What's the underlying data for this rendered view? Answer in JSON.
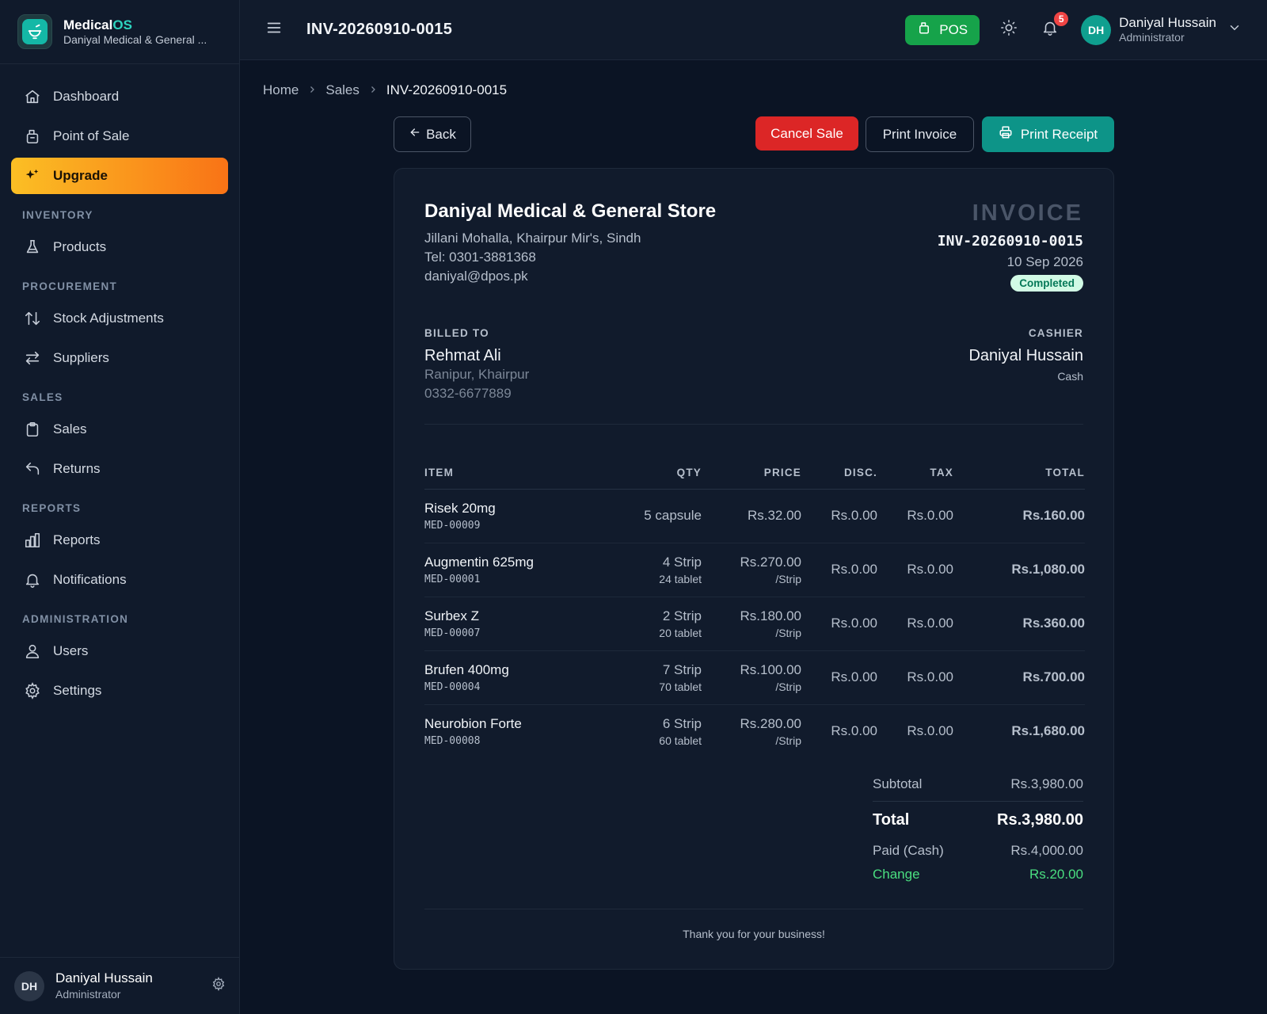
{
  "brand": {
    "name_main": "Medical",
    "name_accent": "OS",
    "store": "Daniyal Medical & General ..."
  },
  "sidebar": {
    "items": [
      {
        "label": "Dashboard",
        "icon": "home-icon"
      },
      {
        "label": "Point of Sale",
        "icon": "pos-icon"
      },
      {
        "label": "Upgrade",
        "icon": "sparkles-icon"
      }
    ],
    "sections": {
      "inventory": {
        "title": "INVENTORY",
        "items": [
          {
            "label": "Products",
            "icon": "flask-icon"
          }
        ]
      },
      "procurement": {
        "title": "PROCUREMENT",
        "items": [
          {
            "label": "Stock Adjustments",
            "icon": "arrows-up-down-icon"
          },
          {
            "label": "Suppliers",
            "icon": "arrows-left-right-icon"
          }
        ]
      },
      "sales": {
        "title": "SALES",
        "items": [
          {
            "label": "Sales",
            "icon": "clipboard-icon"
          },
          {
            "label": "Returns",
            "icon": "undo-icon"
          }
        ]
      },
      "reports": {
        "title": "REPORTS",
        "items": [
          {
            "label": "Reports",
            "icon": "bar-chart-icon"
          },
          {
            "label": "Notifications",
            "icon": "bell-icon"
          }
        ]
      },
      "administration": {
        "title": "ADMINISTRATION",
        "items": [
          {
            "label": "Users",
            "icon": "users-icon"
          },
          {
            "label": "Settings",
            "icon": "gear-icon"
          }
        ]
      }
    },
    "footer": {
      "initials": "DH",
      "name": "Daniyal Hussain",
      "role": "Administrator"
    }
  },
  "header": {
    "title": "INV-20260910-0015",
    "pos_label": "POS",
    "notifications_count": "5",
    "user": {
      "initials": "DH",
      "name": "Daniyal Hussain",
      "role": "Administrator"
    }
  },
  "breadcrumb": {
    "home": "Home",
    "section": "Sales",
    "current": "INV-20260910-0015"
  },
  "toolbar": {
    "back": "Back",
    "cancel": "Cancel Sale",
    "print_invoice": "Print Invoice",
    "print_receipt": "Print Receipt"
  },
  "invoice": {
    "store": {
      "name": "Daniyal Medical & General Store",
      "address": "Jillani Mohalla, Khairpur Mir's, Sindh",
      "phone": "Tel: 0301-3881368",
      "email": "daniyal@dpos.pk"
    },
    "label": "INVOICE",
    "number": "INV-20260910-0015",
    "date": "10 Sep 2026",
    "status": "Completed",
    "billed_to": {
      "label": "BILLED TO",
      "name": "Rehmat Ali",
      "address": "Ranipur, Khairpur",
      "phone": "0332-6677889"
    },
    "cashier": {
      "label": "CASHIER",
      "name": "Daniyal Hussain",
      "method": "Cash"
    },
    "columns": {
      "item": "ITEM",
      "qty": "QTY",
      "price": "PRICE",
      "disc": "DISC.",
      "tax": "TAX",
      "total": "TOTAL"
    },
    "items": [
      {
        "name": "Risek 20mg",
        "code": "MED-00009",
        "qty": "5 capsule",
        "qty_sub": "",
        "price": "Rs.32.00",
        "price_sub": "",
        "disc": "Rs.0.00",
        "tax": "Rs.0.00",
        "total": "Rs.160.00"
      },
      {
        "name": "Augmentin 625mg",
        "code": "MED-00001",
        "qty": "4 Strip",
        "qty_sub": "24 tablet",
        "price": "Rs.270.00",
        "price_sub": "/Strip",
        "disc": "Rs.0.00",
        "tax": "Rs.0.00",
        "total": "Rs.1,080.00"
      },
      {
        "name": "Surbex Z",
        "code": "MED-00007",
        "qty": "2 Strip",
        "qty_sub": "20 tablet",
        "price": "Rs.180.00",
        "price_sub": "/Strip",
        "disc": "Rs.0.00",
        "tax": "Rs.0.00",
        "total": "Rs.360.00"
      },
      {
        "name": "Brufen 400mg",
        "code": "MED-00004",
        "qty": "7 Strip",
        "qty_sub": "70 tablet",
        "price": "Rs.100.00",
        "price_sub": "/Strip",
        "disc": "Rs.0.00",
        "tax": "Rs.0.00",
        "total": "Rs.700.00"
      },
      {
        "name": "Neurobion Forte",
        "code": "MED-00008",
        "qty": "6 Strip",
        "qty_sub": "60 tablet",
        "price": "Rs.280.00",
        "price_sub": "/Strip",
        "disc": "Rs.0.00",
        "tax": "Rs.0.00",
        "total": "Rs.1,680.00"
      }
    ],
    "totals": {
      "subtotal_label": "Subtotal",
      "subtotal": "Rs.3,980.00",
      "total_label": "Total",
      "total": "Rs.3,980.00",
      "paid_label": "Paid (Cash)",
      "paid": "Rs.4,000.00",
      "change_label": "Change",
      "change": "Rs.20.00"
    },
    "footer_note": "Thank you for your business!"
  },
  "colors": {
    "accent": "#0d9488",
    "pos": "#16a34a",
    "danger": "#dc2626",
    "upgrade_start": "#fbbf24",
    "upgrade_end": "#f97316",
    "change": "#4ade80"
  }
}
